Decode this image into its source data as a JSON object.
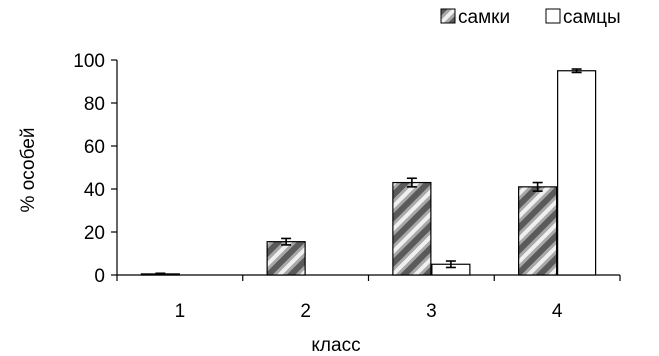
{
  "chart_data": {
    "type": "bar",
    "xlabel": "класс",
    "ylabel": "% особей",
    "ylim": [
      0,
      100
    ],
    "yticks": [
      0,
      20,
      40,
      60,
      80,
      100
    ],
    "categories": [
      "1",
      "2",
      "3",
      "4"
    ],
    "series": [
      {
        "name": "самки",
        "values": [
          0.5,
          15.5,
          43,
          41
        ],
        "errors": [
          0.3,
          1.5,
          2,
          2
        ],
        "fill": "hatched-gray"
      },
      {
        "name": "самцы",
        "values": [
          0,
          0,
          5,
          95
        ],
        "errors": [
          0,
          0,
          1.5,
          0.8
        ],
        "fill": "white"
      }
    ],
    "legend_position": "top-right",
    "grid": false
  }
}
